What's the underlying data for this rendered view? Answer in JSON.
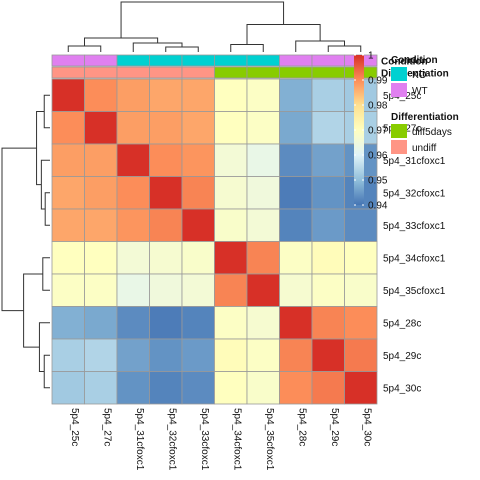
{
  "chart_data": {
    "type": "heatmap",
    "labels": [
      "5p4_25c",
      "5p4_27c",
      "5p4_31cfoxc1",
      "5p4_32cfoxc1",
      "5p4_33cfoxc1",
      "5p4_34cfoxc1",
      "5p4_35cfoxc1",
      "5p4_28c",
      "5p4_29c",
      "5p4_30c"
    ],
    "row_labels": [
      "5p4_25c",
      "5p4_27c",
      "5p4_31cfoxc1",
      "5p4_32cfoxc1",
      "5p4_33cfoxc1",
      "5p4_34cfoxc1",
      "5p4_35cfoxc1",
      "5p4_28c",
      "5p4_29c",
      "5p4_30c"
    ],
    "col_labels": [
      "5p4_25c",
      "5p4_27c",
      "5p4_31cfoxc1",
      "5p4_32cfoxc1",
      "5p4_33cfoxc1",
      "5p4_34cfoxc1",
      "5p4_35cfoxc1",
      "5p4_28c",
      "5p4_29c",
      "5p4_30c"
    ],
    "values": [
      [
        1.0,
        0.99,
        0.988,
        0.987,
        0.987,
        0.97,
        0.969,
        0.948,
        0.953,
        0.952
      ],
      [
        0.99,
        1.0,
        0.988,
        0.988,
        0.987,
        0.97,
        0.969,
        0.947,
        0.954,
        0.953
      ],
      [
        0.988,
        0.988,
        1.0,
        0.99,
        0.989,
        0.966,
        0.963,
        0.943,
        0.946,
        0.944
      ],
      [
        0.987,
        0.988,
        0.99,
        1.0,
        0.991,
        0.967,
        0.965,
        0.941,
        0.944,
        0.942
      ],
      [
        0.987,
        0.987,
        0.989,
        0.991,
        1.0,
        0.968,
        0.966,
        0.942,
        0.945,
        0.943
      ],
      [
        0.97,
        0.97,
        0.966,
        0.967,
        0.968,
        1.0,
        0.991,
        0.969,
        0.971,
        0.97
      ],
      [
        0.969,
        0.969,
        0.963,
        0.965,
        0.966,
        0.991,
        1.0,
        0.967,
        0.969,
        0.968
      ],
      [
        0.948,
        0.947,
        0.943,
        0.941,
        0.942,
        0.969,
        0.967,
        1.0,
        0.991,
        0.99
      ],
      [
        0.953,
        0.954,
        0.946,
        0.944,
        0.945,
        0.971,
        0.969,
        0.991,
        1.0,
        0.992
      ],
      [
        0.952,
        0.953,
        0.944,
        0.942,
        0.943,
        0.97,
        0.968,
        0.99,
        0.992,
        1.0
      ]
    ],
    "color_scale": {
      "min": 0.94,
      "max": 1.0,
      "colors": [
        "#4575b4",
        "#91bfdb",
        "#e0f3f8",
        "#ffffbf",
        "#fee090",
        "#fc8d59",
        "#d73027"
      ],
      "ticks": [
        0.94,
        0.95,
        0.96,
        0.97,
        0.98,
        0.99,
        1.0
      ],
      "tick_labels": [
        "0.94",
        "0.95",
        "0.96",
        "0.97",
        "0.98",
        "0.99",
        "1"
      ]
    },
    "annotations": [
      {
        "name": "Condition",
        "values": [
          "WT",
          "WT",
          "KO",
          "KO",
          "KO",
          "KO",
          "KO",
          "WT",
          "WT",
          "WT"
        ],
        "legend": [
          {
            "label": "KO",
            "color": "#00d1d1"
          },
          {
            "label": "WT",
            "color": "#e080f0"
          }
        ]
      },
      {
        "name": "Differentiation",
        "values": [
          "undiff",
          "undiff",
          "undiff",
          "undiff",
          "undiff",
          "diff5days",
          "diff5days",
          "diff5days",
          "diff5days",
          "diff5days"
        ],
        "legend": [
          {
            "label": "diff5days",
            "color": "#88cc00"
          },
          {
            "label": "undiff",
            "color": "#ff9585"
          }
        ]
      }
    ],
    "col_dendrogram": [
      {
        "pair": [
          0,
          1
        ],
        "height": 0.12
      },
      {
        "pair": [
          3,
          4
        ],
        "height": 0.1
      },
      {
        "pair": [
          2,
          "3-4"
        ],
        "height": 0.18
      },
      {
        "pair": [
          "0-1",
          "2-4"
        ],
        "height": 0.28
      },
      {
        "pair": [
          5,
          6
        ],
        "height": 0.15
      },
      {
        "pair": [
          8,
          9
        ],
        "height": 0.12
      },
      {
        "pair": [
          7,
          "8-9"
        ],
        "height": 0.22
      },
      {
        "pair": [
          "5-6",
          "7-9"
        ],
        "height": 0.55
      },
      {
        "pair": [
          "0-4",
          "5-9"
        ],
        "height": 1.0
      }
    ],
    "row_dendrogram": [
      {
        "pair": [
          0,
          1
        ],
        "height": 0.12
      },
      {
        "pair": [
          3,
          4
        ],
        "height": 0.1
      },
      {
        "pair": [
          2,
          "3-4"
        ],
        "height": 0.18
      },
      {
        "pair": [
          "0-1",
          "2-4"
        ],
        "height": 0.28
      },
      {
        "pair": [
          5,
          6
        ],
        "height": 0.15
      },
      {
        "pair": [
          8,
          9
        ],
        "height": 0.12
      },
      {
        "pair": [
          7,
          "8-9"
        ],
        "height": 0.22
      },
      {
        "pair": [
          "5-6",
          "7-9"
        ],
        "height": 0.55
      },
      {
        "pair": [
          "0-4",
          "5-9"
        ],
        "height": 1.0
      }
    ]
  }
}
